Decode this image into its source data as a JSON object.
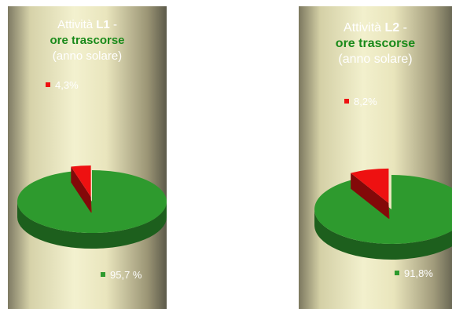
{
  "chart_data": [
    {
      "type": "pie",
      "title_parts": [
        "Attività",
        "L1",
        "-",
        "ore trascorse",
        "(anno solare)"
      ],
      "slices": [
        {
          "label": "4,3%",
          "value": 4.3,
          "color": "#ee1111"
        },
        {
          "label": "95,7 %",
          "value": 95.7,
          "color": "#2e9a2e"
        }
      ]
    },
    {
      "type": "pie",
      "title_parts": [
        "Attività",
        "L2",
        "-",
        "ore trascorse",
        "(anno solare)"
      ],
      "slices": [
        {
          "label": "8,2%",
          "value": 8.2,
          "color": "#ee1111"
        },
        {
          "label": "91,8%",
          "value": 91.8,
          "color": "#2e9a2e"
        }
      ]
    }
  ]
}
